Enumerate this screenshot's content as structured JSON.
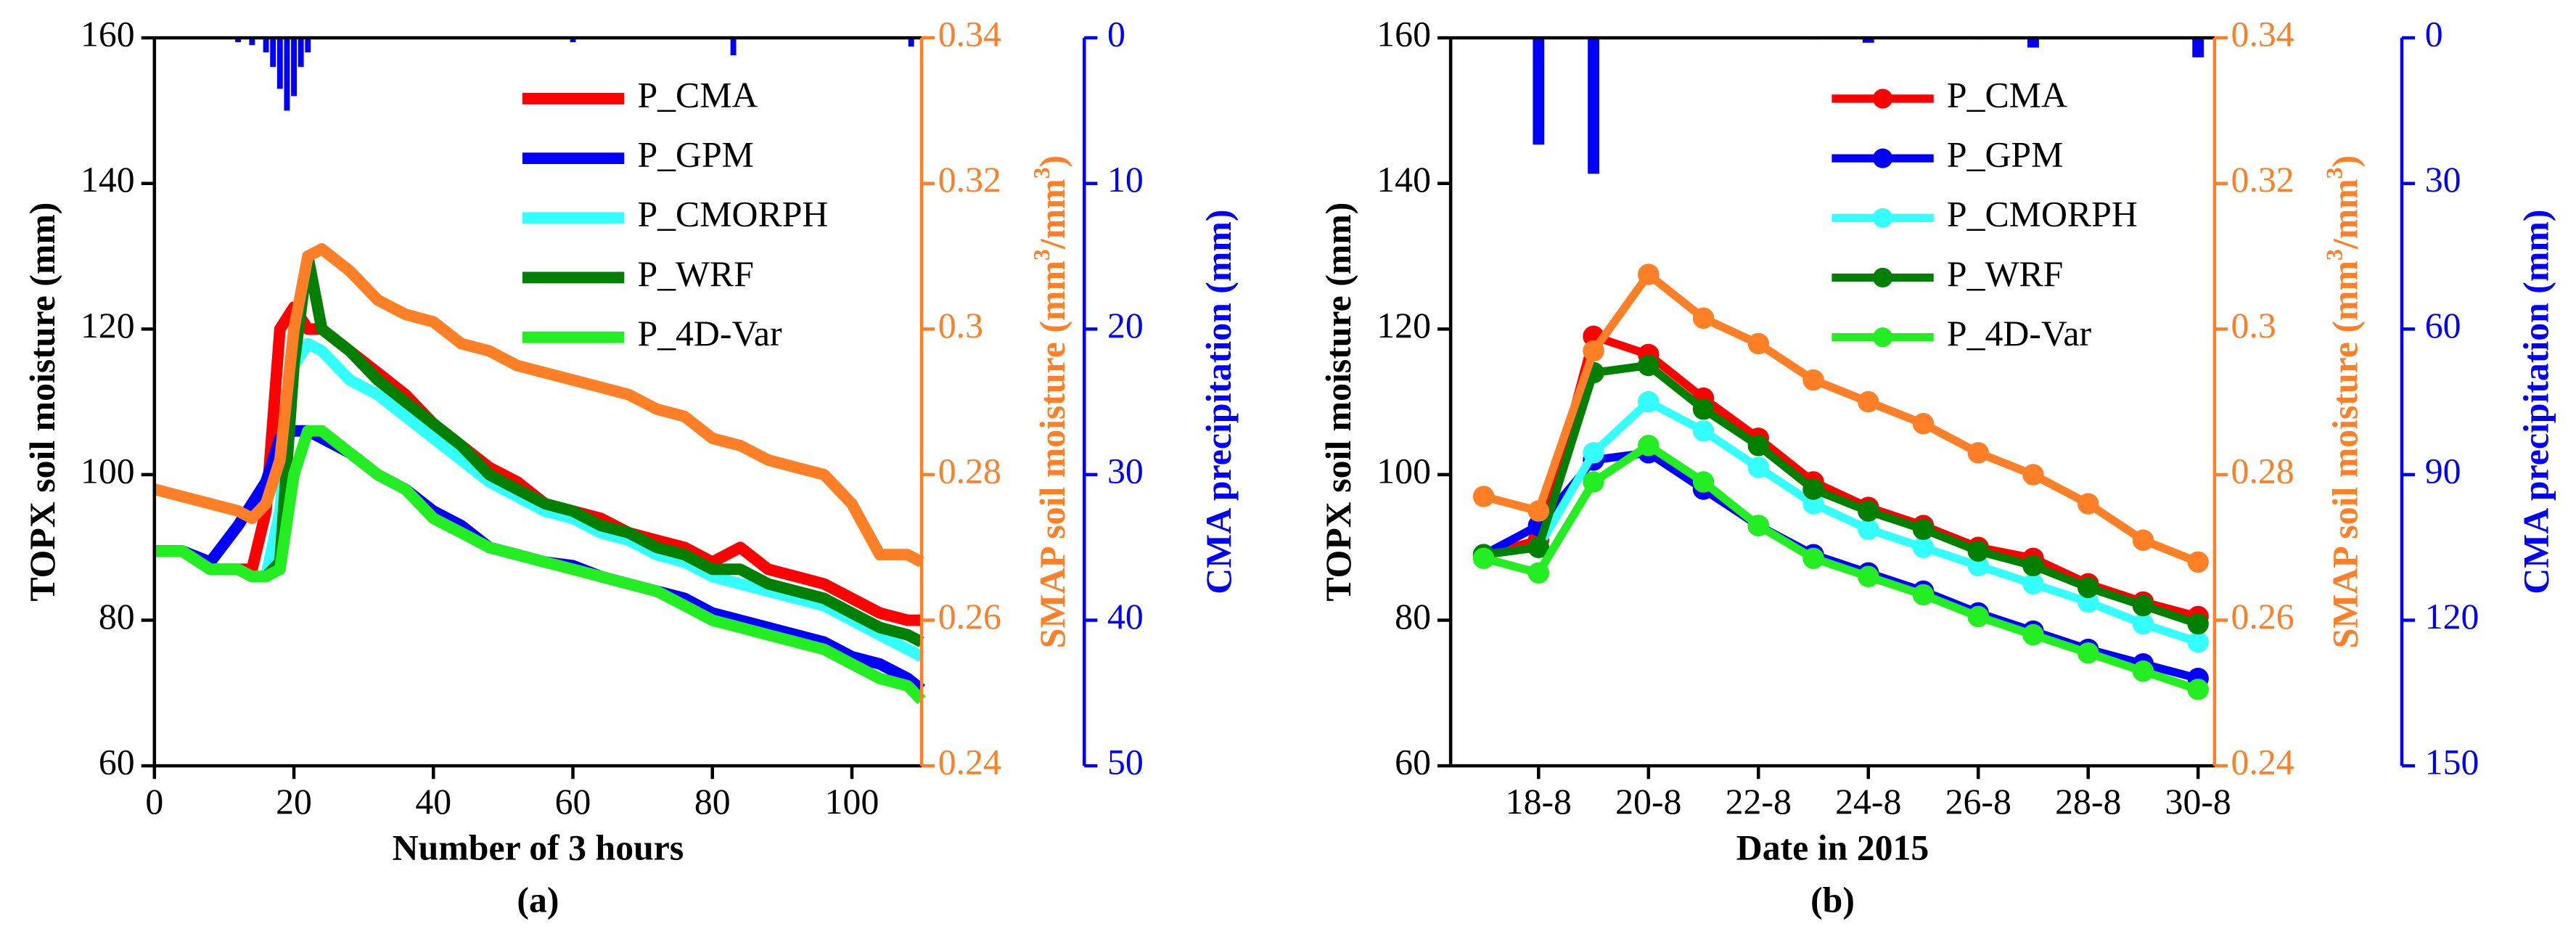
{
  "chart_data": [
    {
      "type": "line",
      "xlabel": "Number of 3 hours",
      "sublabel": "(a)",
      "ylabel": "TOPX soil moisture (mm)",
      "y2label": [
        "SMAP soil moisture (mm",
        "3",
        "/mm",
        "3",
        ")"
      ],
      "y3label": "CMA precipitation (mm)",
      "xlim": [
        0,
        110
      ],
      "xticks": [
        0,
        20,
        40,
        60,
        80,
        100
      ],
      "ylim": [
        60,
        160
      ],
      "yticks": [
        60,
        80,
        100,
        120,
        140,
        160
      ],
      "y2lim": [
        0.24,
        0.34
      ],
      "y2ticks": [
        0.24,
        0.26,
        0.28,
        0.3,
        0.32,
        0.34
      ],
      "y2color": "#ff7f27",
      "y3lim": [
        0,
        50
      ],
      "y3ticks": [
        0,
        10,
        20,
        30,
        40,
        50
      ],
      "y3_inverted": true,
      "y3color": "#0000ff",
      "legend": "upper right",
      "markers": false,
      "x": [
        0,
        4,
        8,
        12,
        14,
        16,
        18,
        20,
        22,
        24,
        28,
        32,
        36,
        40,
        44,
        48,
        52,
        56,
        60,
        64,
        68,
        72,
        76,
        80,
        84,
        88,
        92,
        96,
        100,
        104,
        108,
        110
      ],
      "series": [
        {
          "name": "P_CMA",
          "color": "#ff0000",
          "values": [
            89.5,
            89.5,
            87,
            87,
            87,
            95,
            120,
            123,
            120,
            120,
            117,
            114,
            111,
            107,
            104,
            101,
            99,
            96,
            95,
            94,
            92,
            91,
            90,
            88,
            90,
            87,
            86,
            85,
            83,
            81,
            80,
            80
          ]
        },
        {
          "name": "P_GPM",
          "color": "#0000ff",
          "values": [
            89.5,
            89.5,
            88,
            93,
            96,
            99,
            105,
            106,
            106,
            105,
            103,
            100,
            98,
            95,
            93,
            90,
            89,
            88,
            87.5,
            86,
            85,
            84,
            83,
            81,
            80,
            79,
            78,
            77,
            75,
            74,
            72,
            70.5
          ]
        },
        {
          "name": "P_CMORPH",
          "color": "#33ffff",
          "values": [
            89.5,
            89.5,
            87,
            87,
            86,
            86,
            95,
            115,
            118,
            117,
            113,
            111,
            108,
            105,
            102,
            99,
            97,
            95,
            94,
            92,
            91,
            89,
            88,
            86,
            85,
            84,
            83,
            82,
            80,
            78,
            76,
            75
          ]
        },
        {
          "name": "P_WRF",
          "color": "#008000",
          "values": [
            89.5,
            89.5,
            87,
            87,
            86,
            86,
            88,
            115,
            130,
            120,
            117,
            113,
            110,
            107,
            104,
            100,
            98,
            96,
            95,
            93,
            92,
            90,
            89,
            87,
            87,
            85,
            84,
            83,
            81,
            79,
            78,
            77
          ]
        },
        {
          "name": "P_4D-Var",
          "color": "#22ee22",
          "values": [
            89.5,
            89.5,
            87,
            87,
            86,
            86,
            87,
            100,
            106,
            106,
            103,
            100,
            98,
            94,
            92,
            90,
            89,
            88,
            87,
            86,
            85,
            84,
            82,
            80,
            79,
            78,
            77,
            76,
            74,
            72,
            71,
            69
          ]
        },
        {
          "axis": "y2",
          "color": "#ff7f27",
          "values": [
            0.278,
            0.277,
            0.276,
            0.275,
            0.274,
            0.276,
            0.282,
            0.3,
            0.31,
            0.311,
            0.308,
            0.304,
            0.302,
            0.301,
            0.298,
            0.297,
            0.295,
            0.294,
            0.293,
            0.292,
            0.291,
            0.289,
            0.288,
            0.285,
            0.284,
            0.282,
            0.281,
            0.28,
            0.276,
            0.269,
            0.269,
            0.268
          ]
        },
        {
          "axis": "y3",
          "type": "bar",
          "color": "#0000ff",
          "x": [
            12,
            14,
            16,
            17,
            18,
            19,
            20,
            21,
            22,
            60,
            83,
            108.5
          ],
          "values": [
            0.3,
            0.5,
            1,
            2,
            3.5,
            5,
            4,
            2,
            1,
            0.3,
            1.2,
            0.6
          ]
        }
      ]
    },
    {
      "type": "line",
      "xlabel": "Date in 2015",
      "sublabel": "(b)",
      "ylabel": "TOPX soil moisture (mm)",
      "y2label": [
        "SMAP soil moisture (mm",
        "3",
        "/mm",
        "3",
        ")"
      ],
      "y3label": "CMA precipitation (mm)",
      "xlim": [
        16.4,
        30.3
      ],
      "xticks": [
        {
          "value": 18,
          "label": "18-8"
        },
        {
          "value": 20,
          "label": "20-8"
        },
        {
          "value": 22,
          "label": "22-8"
        },
        {
          "value": 24,
          "label": "24-8"
        },
        {
          "value": 26,
          "label": "26-8"
        },
        {
          "value": 28,
          "label": "28-8"
        },
        {
          "value": 30,
          "label": "30-8"
        }
      ],
      "ylim": [
        60,
        160
      ],
      "yticks": [
        60,
        80,
        100,
        120,
        140,
        160
      ],
      "y2lim": [
        0.24,
        0.34
      ],
      "y2ticks": [
        0.24,
        0.26,
        0.28,
        0.3,
        0.32,
        0.34
      ],
      "y2color": "#ff7f27",
      "y3lim": [
        0,
        150
      ],
      "y3ticks": [
        0,
        30,
        60,
        90,
        120,
        150
      ],
      "y3_inverted": true,
      "y3color": "#0000ff",
      "legend": "upper right",
      "markers": true,
      "x": [
        17,
        18,
        19,
        20,
        21,
        22,
        23,
        24,
        25,
        26,
        27,
        28,
        29,
        30
      ],
      "series": [
        {
          "name": "P_CMA",
          "color": "#ff0000",
          "values": [
            89,
            91,
            119,
            116.5,
            110.5,
            105,
            99,
            95.5,
            93,
            90,
            88.5,
            85,
            82.5,
            80.5
          ]
        },
        {
          "name": "P_GPM",
          "color": "#0000ff",
          "values": [
            89,
            93,
            102,
            103,
            98,
            93,
            89,
            86.5,
            84,
            81,
            78.5,
            76,
            74,
            72
          ]
        },
        {
          "name": "P_CMORPH",
          "color": "#33ffff",
          "values": [
            89,
            90,
            103,
            110,
            106,
            101,
            96,
            92.5,
            90,
            87.5,
            85,
            82.5,
            79.5,
            77
          ]
        },
        {
          "name": "P_WRF",
          "color": "#008000",
          "values": [
            89,
            90,
            114,
            115,
            109,
            104,
            98,
            95,
            92.5,
            89.5,
            87.5,
            84.5,
            82,
            79.5
          ]
        },
        {
          "name": "P_4D-Var",
          "color": "#22ee22",
          "values": [
            88.5,
            86.5,
            99,
            104,
            99,
            93,
            88.5,
            86,
            83.5,
            80.5,
            78,
            75.5,
            73,
            70.5
          ]
        },
        {
          "axis": "y2",
          "color": "#ff7f27",
          "values": [
            0.277,
            0.275,
            0.297,
            0.3075,
            0.3015,
            0.298,
            0.293,
            0.29,
            0.287,
            0.283,
            0.28,
            0.276,
            0.271,
            0.268
          ]
        },
        {
          "axis": "y3",
          "type": "bar",
          "color": "#0000ff",
          "x": [
            18,
            19,
            23,
            24,
            26,
            27,
            30
          ],
          "values": [
            22,
            28,
            0.3,
            1,
            0.3,
            2,
            4
          ]
        }
      ]
    }
  ]
}
